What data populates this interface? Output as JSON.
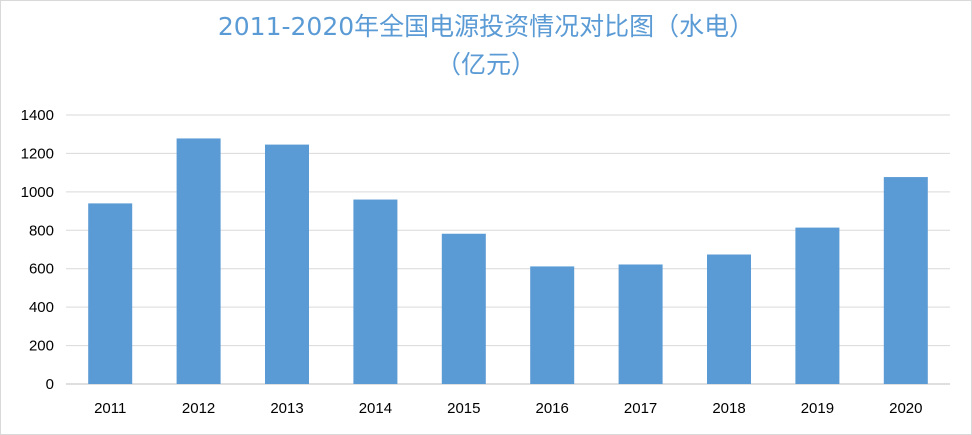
{
  "chart_data": {
    "type": "bar",
    "title": "2011-2020年全国电源投资情况对比图（水电）",
    "subtitle": "（亿元）",
    "categories": [
      "2011",
      "2012",
      "2013",
      "2014",
      "2015",
      "2016",
      "2017",
      "2018",
      "2019",
      "2020"
    ],
    "series": [
      {
        "values": [
          940,
          1278,
          1246,
          960,
          782,
          612,
          622,
          674,
          814,
          1077
        ]
      }
    ],
    "ylim": [
      0,
      1400
    ],
    "yticks": [
      "0",
      "200",
      "400",
      "600",
      "800",
      "1000",
      "1200",
      "1400"
    ],
    "grid": true,
    "legend": "none",
    "colors": {
      "bar": "#5b9bd5",
      "title": "#5b9bd5",
      "grid": "#d9d9d9",
      "axis": "#bfbfbf"
    }
  }
}
